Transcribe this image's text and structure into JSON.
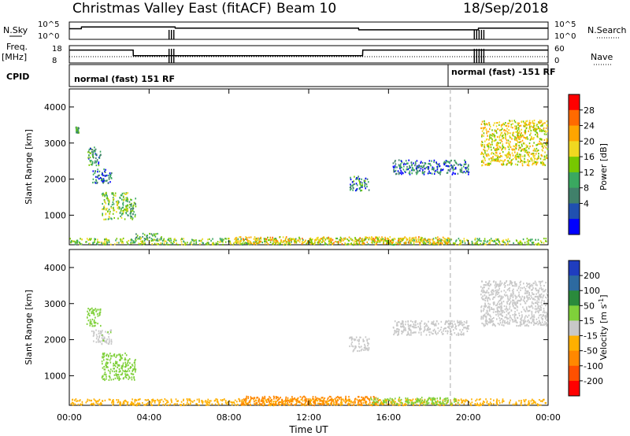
{
  "header": {
    "title": "Christmas Valley East (fitACF)",
    "beam": "Beam 10",
    "date": "18/Sep/2018"
  },
  "left_labels": {
    "nsky": "N.Sky",
    "freq": "Freq.",
    "freq_unit": "[MHz]",
    "cpid": "CPID"
  },
  "right_labels": {
    "nsearch": "N.Search",
    "nave": "Nave"
  },
  "mini_axes": {
    "nsky_ticks": [
      "10^5",
      "10^0"
    ],
    "nsearch_ticks": [
      "10^5",
      "10^0"
    ],
    "freq_ticks": [
      "18",
      "8"
    ],
    "nave_ticks": [
      "60",
      "0"
    ]
  },
  "cpid_text": [
    "normal (fast) 151 RF",
    "normal (fast) -151 RF"
  ],
  "colorbar_power": {
    "label": "Power [dB]",
    "ticks": [
      "28",
      "24",
      "20",
      "16",
      "12",
      "8",
      "4"
    ],
    "colors": [
      "#ff0000",
      "#ff6a00",
      "#ffa500",
      "#f0d820",
      "#77c800",
      "#3aa860",
      "#40806a",
      "#2050b0",
      "#0000ff"
    ]
  },
  "colorbar_velocity": {
    "label": "Velocity [m s",
    "label_sup": "-1",
    "label_end": "]",
    "ticks": [
      "200",
      "100",
      "50",
      "15",
      "-15",
      "-50",
      "-100",
      "-200"
    ],
    "colors": [
      "#1f3dbf",
      "#2d6aa0",
      "#2a8a3c",
      "#7fd03a",
      "#c8c8c8",
      "#ffb000",
      "#ff8800",
      "#ff5000",
      "#ff0000"
    ]
  },
  "chart_data": [
    {
      "type": "line",
      "panel": "N.Sky / N.Search",
      "series": [
        {
          "name": "N.Sky",
          "x": [
            0,
            0.6,
            0.61,
            5.3,
            5.31,
            14.5,
            14.51,
            20.5,
            20.51,
            24
          ],
          "values": [
            3.2,
            3.2,
            3.8,
            3.8,
            3.4,
            3.4,
            2.8,
            2.8,
            3.4,
            3.4
          ]
        }
      ],
      "xlim": [
        0,
        24
      ],
      "ylabel": "N.Sky"
    },
    {
      "type": "line",
      "panel": "Freq. / Nave",
      "series": [
        {
          "name": "Freq.",
          "x": [
            0,
            3.2,
            3.21,
            14.7,
            14.71,
            24
          ],
          "values": [
            16,
            16,
            12,
            12,
            16,
            16
          ]
        }
      ],
      "xlim": [
        0,
        24
      ],
      "ylabel": "Freq. [MHz]"
    },
    {
      "type": "heatmap",
      "panel": "Power",
      "xlabel": "",
      "ylabel": "Slant Range [km]",
      "xlim": [
        0,
        24
      ],
      "ylim": [
        180,
        4500
      ],
      "x_ticks": [
        "00:00",
        "04:00",
        "08:00",
        "12:00",
        "16:00",
        "20:00",
        "00:00"
      ],
      "y_ticks": [
        "1000",
        "2000",
        "3000",
        "4000"
      ],
      "regions": [
        {
          "t0": 0.0,
          "t1": 23.9,
          "r0": 200,
          "r1": 380,
          "value": 14
        },
        {
          "t0": 8.2,
          "t1": 19.0,
          "r0": 220,
          "r1": 420,
          "value": 20
        },
        {
          "t0": 3.3,
          "t1": 4.6,
          "r0": 320,
          "r1": 520,
          "value": 12
        },
        {
          "t0": 0.85,
          "t1": 1.55,
          "r0": 2400,
          "r1": 2900,
          "value": 8
        },
        {
          "t0": 1.1,
          "t1": 2.1,
          "r0": 1900,
          "r1": 2300,
          "value": 6
        },
        {
          "t0": 1.6,
          "t1": 2.9,
          "r0": 900,
          "r1": 1650,
          "value": 14
        },
        {
          "t0": 2.9,
          "t1": 3.3,
          "r0": 900,
          "r1": 1500,
          "value": 10
        },
        {
          "t0": 14.0,
          "t1": 15.0,
          "r0": 1700,
          "r1": 2100,
          "value": 8
        },
        {
          "t0": 16.2,
          "t1": 20.0,
          "r0": 2150,
          "r1": 2550,
          "value": 6
        },
        {
          "t0": 20.6,
          "t1": 23.95,
          "r0": 2400,
          "r1": 3650,
          "value": 18
        },
        {
          "t0": 0.3,
          "t1": 0.45,
          "r0": 3300,
          "r1": 3500,
          "value": 10
        }
      ]
    },
    {
      "type": "heatmap",
      "panel": "Velocity",
      "xlabel": "Time UT",
      "ylabel": "Slant Range [km]",
      "xlim": [
        0,
        24
      ],
      "ylim": [
        180,
        4500
      ],
      "x_ticks": [
        "00:00",
        "04:00",
        "08:00",
        "12:00",
        "16:00",
        "20:00",
        "00:00"
      ],
      "y_ticks": [
        "1000",
        "2000",
        "3000",
        "4000"
      ],
      "regions": [
        {
          "t0": 0.0,
          "t1": 23.9,
          "r0": 200,
          "r1": 380,
          "value": -30
        },
        {
          "t0": 8.5,
          "t1": 15.5,
          "r0": 200,
          "r1": 450,
          "value": -60
        },
        {
          "t0": 15.0,
          "t1": 19.5,
          "r0": 220,
          "r1": 420,
          "value": 30
        },
        {
          "t0": 0.85,
          "t1": 1.55,
          "r0": 2400,
          "r1": 2900,
          "value": 30
        },
        {
          "t0": 1.1,
          "t1": 2.1,
          "r0": 1900,
          "r1": 2300,
          "value": 10
        },
        {
          "t0": 1.6,
          "t1": 2.9,
          "r0": 900,
          "r1": 1650,
          "value": 40
        },
        {
          "t0": 2.9,
          "t1": 3.3,
          "r0": 900,
          "r1": 1500,
          "value": 40
        },
        {
          "t0": 14.0,
          "t1": 15.0,
          "r0": 1700,
          "r1": 2100,
          "value": 0
        },
        {
          "t0": 16.2,
          "t1": 20.0,
          "r0": 2150,
          "r1": 2550,
          "value": 0
        },
        {
          "t0": 20.6,
          "t1": 23.95,
          "r0": 2400,
          "r1": 3650,
          "value": 0
        }
      ]
    }
  ]
}
